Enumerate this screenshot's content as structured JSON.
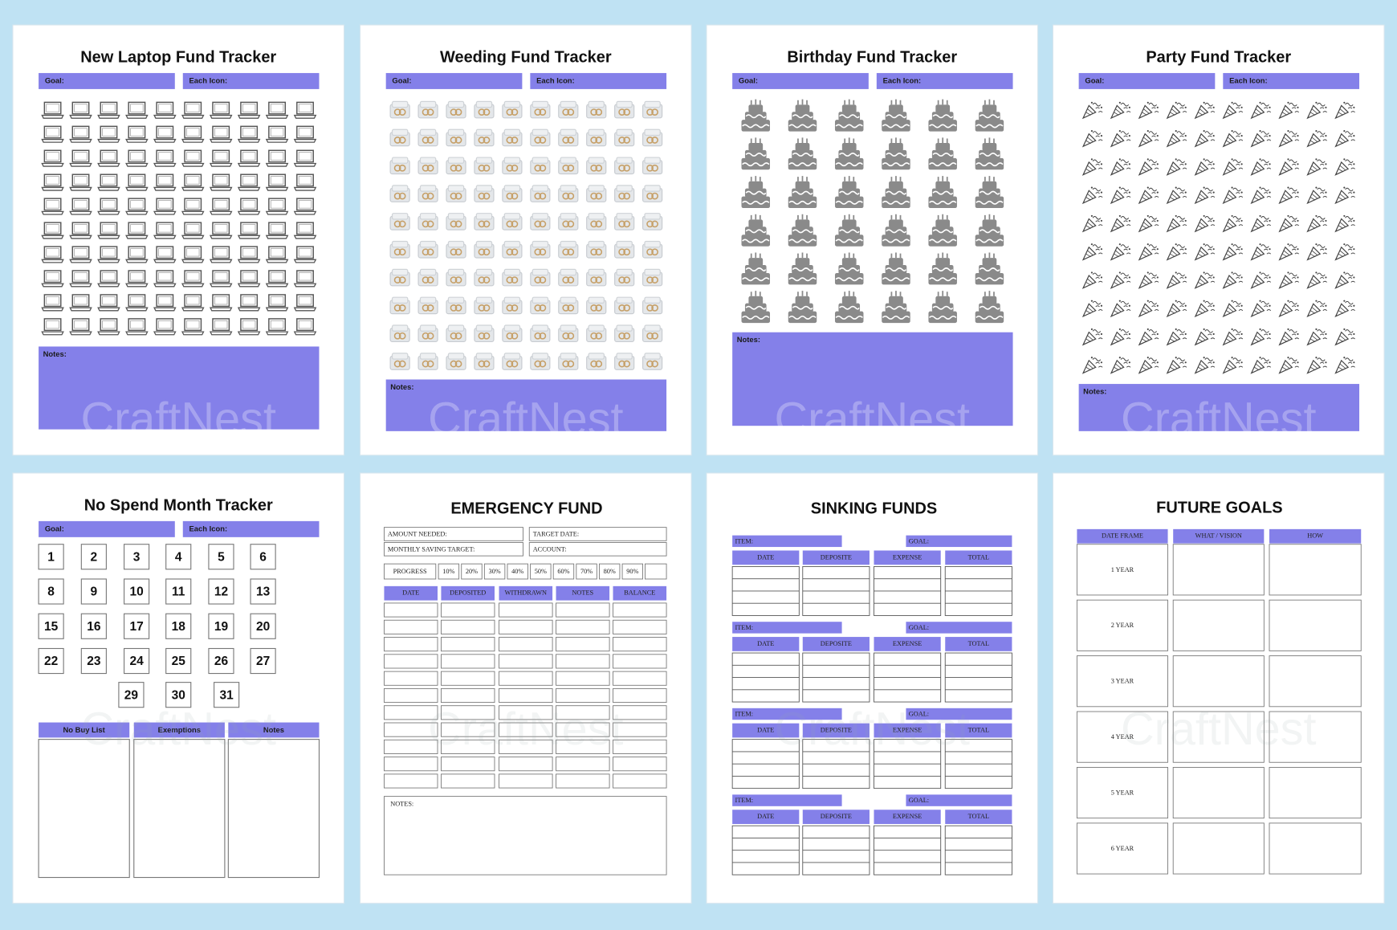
{
  "trackers": [
    {
      "title": "New Laptop  Fund Tracker",
      "goal": "Goal:",
      "each_icon": "Each Icon:",
      "notes": "Notes:"
    },
    {
      "title": "Weeding Fund Tracker",
      "goal": "Goal:",
      "each_icon": "Each Icon:",
      "notes": "Notes:"
    },
    {
      "title": "Birthday Fund Tracker",
      "goal": "Goal:",
      "each_icon": "Each Icon:",
      "notes": "Notes:"
    },
    {
      "title": "Party Fund Tracker",
      "goal": "Goal:",
      "each_icon": "Each Icon:",
      "notes": "Notes:"
    }
  ],
  "no_spend": {
    "title": "No Spend Month Tracker",
    "goal": "Goal:",
    "each_icon": "Each Icon:",
    "days": [
      "1",
      "2",
      "3",
      "4",
      "5",
      "6",
      "8",
      "9",
      "10",
      "11",
      "12",
      "13",
      "15",
      "16",
      "17",
      "18",
      "19",
      "20",
      "22",
      "23",
      "24",
      "25",
      "26",
      "27",
      "29",
      "30",
      "31"
    ],
    "lists": [
      "No Buy List",
      "Exemptions",
      "Notes"
    ]
  },
  "emergency": {
    "title": "EMERGENCY FUND",
    "amount_needed": "AMOUNT NEEDED:",
    "target_date": "TARGET DATE:",
    "monthly_target": "MONTHLY SAVING TARGET:",
    "account": "ACCOUNT:",
    "progress": "PROGRESS",
    "percents": [
      "10%",
      "20%",
      "30%",
      "40%",
      "50%",
      "60%",
      "70%",
      "80%",
      "90%"
    ],
    "columns": [
      "DATE",
      "DEPOSITED",
      "WITHDRAWN",
      "NOTES",
      "BALANCE"
    ],
    "notes": "NOTES:"
  },
  "sinking": {
    "title": "SINKING FUNDS",
    "item": "ITEM:",
    "goal": "GOAL:",
    "columns": [
      "DATE",
      "DEPOSITE",
      "EXPENSE",
      "TOTAL"
    ]
  },
  "future": {
    "title": "FUTURE GOALS",
    "columns": [
      "DATE FRAME",
      "WHAT / VISION",
      "HOW"
    ],
    "rows": [
      "1 YEAR",
      "2 YEAR",
      "3 YEAR",
      "4 YEAR",
      "5 YEAR",
      "6 YEAR"
    ]
  },
  "watermark": "CraftNest"
}
